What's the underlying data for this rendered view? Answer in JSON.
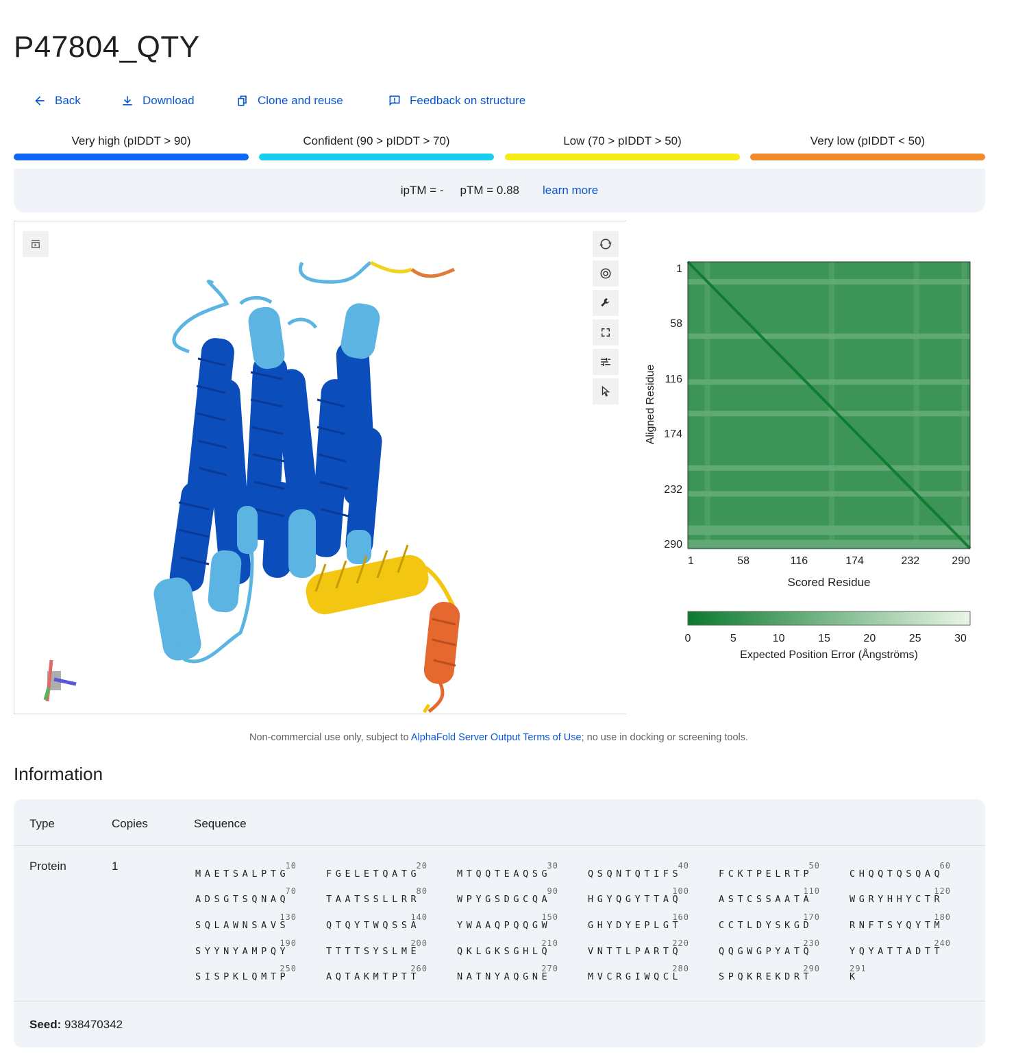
{
  "page": {
    "title": "P47804_QTY"
  },
  "actions": {
    "back": "Back",
    "download": "Download",
    "clone": "Clone and reuse",
    "feedback": "Feedback on structure"
  },
  "confidence_legend": [
    {
      "label": "Very high (pIDDT > 90)",
      "color": "#1066f6"
    },
    {
      "label": "Confident (90 > pIDDT > 70)",
      "color": "#19cdee"
    },
    {
      "label": "Low (70 > pIDDT > 50)",
      "color": "#f5ed18"
    },
    {
      "label": "Very low (pIDDT < 50)",
      "color": "#f08a2c"
    }
  ],
  "metrics": {
    "iptm": "ipTM = -",
    "ptm": "pTM = 0.88",
    "learn_more": "learn more"
  },
  "viewer": {
    "toggle_icon": "panel-toggle-icon",
    "tools": [
      "rotate-icon",
      "camera-icon",
      "wrench-icon",
      "expand-icon",
      "sliders-icon",
      "cursor-icon"
    ]
  },
  "pae_plot": {
    "y_title": "Aligned Residue",
    "x_title": "Scored Residue",
    "y_ticks": [
      "1",
      "58",
      "116",
      "174",
      "232",
      "290"
    ],
    "x_ticks": [
      "1",
      "58",
      "116",
      "174",
      "232",
      "290"
    ],
    "colorbar_ticks": [
      "0",
      "5",
      "10",
      "15",
      "20",
      "25",
      "30"
    ],
    "colorbar_title": "Expected Position Error (Ångströms)",
    "colors": {
      "low_error": "#0b7a2e",
      "high_error": "#eaf6e6"
    }
  },
  "terms": {
    "prefix": "Non-commercial use only, subject to ",
    "link": "AlphaFold Server Output Terms of Use",
    "suffix": "; no use in docking or screening tools."
  },
  "information": {
    "title": "Information",
    "headers": {
      "type": "Type",
      "copies": "Copies",
      "sequence": "Sequence"
    },
    "row": {
      "type": "Protein",
      "copies": "1"
    },
    "sequence_blocks": [
      {
        "num": "10",
        "res": "MAETSALPTG"
      },
      {
        "num": "20",
        "res": "FGELETQATG"
      },
      {
        "num": "30",
        "res": "MTQQTEAQSG"
      },
      {
        "num": "40",
        "res": "QSQNTQTIFS"
      },
      {
        "num": "50",
        "res": "FCKTPELRTP"
      },
      {
        "num": "60",
        "res": "CHQQTQSQAQ"
      },
      {
        "num": "70",
        "res": "ADSGTSQNAQ"
      },
      {
        "num": "80",
        "res": "TAATSSLLRR"
      },
      {
        "num": "90",
        "res": "WPYGSDGCQA"
      },
      {
        "num": "100",
        "res": "HGYQGYTTAQ"
      },
      {
        "num": "110",
        "res": "ASTCSSAATA"
      },
      {
        "num": "120",
        "res": "WGRYHHYCTR"
      },
      {
        "num": "130",
        "res": "SQLAWNSAVS"
      },
      {
        "num": "140",
        "res": "QTQYTWQSSA"
      },
      {
        "num": "150",
        "res": "YWAAQPQQGW"
      },
      {
        "num": "160",
        "res": "GHYDYEPLGT"
      },
      {
        "num": "170",
        "res": "CCTLDYSKGD"
      },
      {
        "num": "180",
        "res": "RNFTSYQYTM"
      },
      {
        "num": "190",
        "res": "SYYNYAMPQY"
      },
      {
        "num": "200",
        "res": "TTTTSYSLME"
      },
      {
        "num": "210",
        "res": "QKLGKSGHLQ"
      },
      {
        "num": "220",
        "res": "VNTTLPARTQ"
      },
      {
        "num": "230",
        "res": "QQGWGPYATQ"
      },
      {
        "num": "240",
        "res": "YQYATTADTT"
      },
      {
        "num": "250",
        "res": "SISPKLQMTP"
      },
      {
        "num": "260",
        "res": "AQTAKMTPTT"
      },
      {
        "num": "270",
        "res": "NATNYAQGNE"
      },
      {
        "num": "280",
        "res": "MVCRGIWQCL"
      },
      {
        "num": "290",
        "res": "SPQKREKDRT"
      },
      {
        "num": "291",
        "res": "K"
      }
    ],
    "seed_label": "Seed:",
    "seed_value": "938470342"
  }
}
